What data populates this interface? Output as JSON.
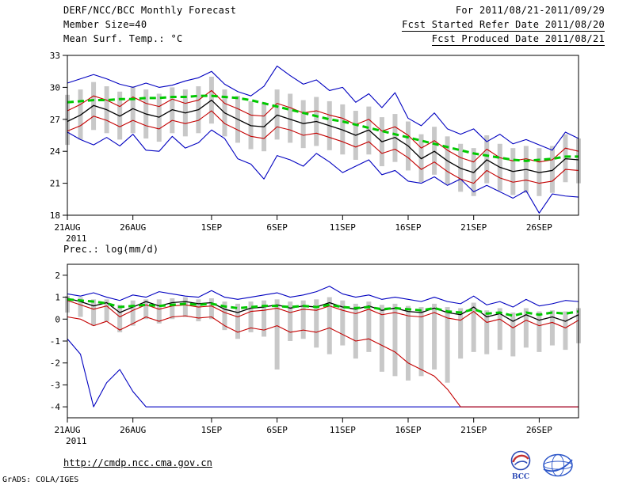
{
  "header": {
    "title": "DERF/NCC/BCC Monthly Forecast",
    "member_size": "Member Size=40",
    "temp_title": "Mean Surf. Temp.: °C",
    "forecast_range": "For 2011/08/21-2011/09/29",
    "fcst_started": "Fcst Started Refer Date 2011/08/20",
    "fcst_produced": "Fcst Produced Date 2011/08/21"
  },
  "footer": {
    "url": "http://cmdp.ncc.cma.gov.cn",
    "credit": "GrADS: COLA/IGES",
    "bcc_label": "BCC"
  },
  "colors": {
    "line_blue": "#0000c0",
    "line_red": "#c40000",
    "line_black": "#000000",
    "climatology_green": "#00c800",
    "spread_gray": "#c8c8c8"
  },
  "chart_data": [
    {
      "type": "line",
      "name": "temperature",
      "title": "Mean Surf. Temp.: °C",
      "xlabel": "",
      "ylabel": "Mean Surf. Temp. (°C)",
      "ylim": [
        18,
        33
      ],
      "yticks": [
        33,
        30,
        27,
        24,
        21,
        18
      ],
      "x_sub_label": "2011",
      "x_ticks": [
        {
          "i": 0,
          "label": "21AUG"
        },
        {
          "i": 5,
          "label": "26AUG"
        },
        {
          "i": 11,
          "label": "1SEP"
        },
        {
          "i": 16,
          "label": "6SEP"
        },
        {
          "i": 21,
          "label": "11SEP"
        },
        {
          "i": 26,
          "label": "16SEP"
        },
        {
          "i": 31,
          "label": "21SEP"
        },
        {
          "i": 36,
          "label": "26SEP"
        }
      ],
      "bars": {
        "color": "#c8c8c8",
        "high": [
          29.3,
          29.8,
          30.5,
          30.1,
          29.6,
          30.1,
          29.8,
          29.4,
          30.0,
          29.8,
          30.1,
          31.0,
          29.8,
          29.2,
          28.7,
          28.6,
          29.8,
          29.4,
          28.8,
          29.1,
          28.7,
          28.4,
          27.8,
          28.2,
          27.2,
          27.5,
          26.8,
          25.6,
          26.3,
          25.4,
          24.7,
          24.3,
          25.5,
          24.7,
          24.3,
          24.5,
          24.3,
          24.5,
          25.6,
          25.2
        ],
        "low": [
          24.6,
          25.1,
          26.0,
          25.7,
          25.1,
          25.7,
          25.2,
          24.9,
          25.7,
          25.4,
          25.7,
          26.6,
          25.4,
          24.8,
          24.2,
          24.0,
          25.1,
          24.8,
          24.3,
          24.5,
          24.1,
          23.7,
          23.2,
          23.7,
          22.6,
          23.0,
          22.2,
          21.1,
          21.8,
          20.9,
          20.2,
          19.8,
          21.0,
          20.3,
          19.9,
          20.1,
          19.8,
          20.1,
          21.1,
          21.0
        ]
      },
      "series": [
        {
          "name": "ensemble-max",
          "color": "#0000c0",
          "width": 1.1,
          "values": [
            30.4,
            30.8,
            31.2,
            30.8,
            30.3,
            30.0,
            30.4,
            30.0,
            30.2,
            30.6,
            30.9,
            31.5,
            30.3,
            29.6,
            29.2,
            30.1,
            32.0,
            31.1,
            30.3,
            30.7,
            29.7,
            30.0,
            28.6,
            29.4,
            28.1,
            29.5,
            27.1,
            26.4,
            27.6,
            26.1,
            25.6,
            26.1,
            24.9,
            25.6,
            24.7,
            25.1,
            24.6,
            24.1,
            25.8,
            25.2
          ]
        },
        {
          "name": "ensemble-min",
          "color": "#0000c0",
          "width": 1.1,
          "values": [
            25.8,
            25.1,
            24.6,
            25.3,
            24.5,
            25.6,
            24.1,
            24.0,
            25.4,
            24.3,
            24.8,
            26.0,
            25.2,
            23.3,
            22.8,
            21.4,
            23.6,
            23.2,
            22.6,
            23.8,
            23.0,
            22.0,
            22.6,
            23.2,
            21.8,
            22.2,
            21.2,
            21.0,
            21.6,
            20.8,
            21.4,
            20.2,
            20.8,
            20.2,
            19.6,
            20.3,
            18.2,
            20.0,
            19.8,
            19.7
          ]
        },
        {
          "name": "mean-plus-std",
          "color": "#c40000",
          "width": 1.1,
          "values": [
            27.8,
            28.4,
            29.2,
            28.8,
            28.2,
            29.1,
            28.5,
            28.2,
            28.9,
            28.5,
            28.8,
            29.7,
            28.5,
            28.0,
            27.4,
            27.3,
            28.5,
            28.1,
            27.6,
            27.8,
            27.4,
            27.1,
            26.5,
            27.0,
            25.9,
            26.3,
            25.5,
            24.3,
            25.0,
            24.1,
            23.4,
            23.0,
            24.2,
            23.4,
            23.1,
            23.3,
            23.0,
            23.2,
            24.3,
            24.0
          ]
        },
        {
          "name": "mean-minus-std",
          "color": "#c40000",
          "width": 1.1,
          "values": [
            25.9,
            26.4,
            27.3,
            26.9,
            26.3,
            26.9,
            26.4,
            26.1,
            26.9,
            26.6,
            26.9,
            27.8,
            26.6,
            26.0,
            25.4,
            25.2,
            26.3,
            26.0,
            25.5,
            25.7,
            25.3,
            24.9,
            24.4,
            24.9,
            23.8,
            24.2,
            23.4,
            22.3,
            23.0,
            22.1,
            21.4,
            21.0,
            22.2,
            21.5,
            21.1,
            21.3,
            21.0,
            21.2,
            22.3,
            22.2
          ]
        },
        {
          "name": "ensemble-mean",
          "color": "#000000",
          "width": 1.3,
          "values": [
            26.8,
            27.4,
            28.3,
            27.9,
            27.3,
            28.0,
            27.5,
            27.2,
            27.9,
            27.6,
            27.9,
            28.8,
            27.6,
            27.0,
            26.4,
            26.3,
            27.4,
            27.0,
            26.6,
            26.8,
            26.4,
            26.0,
            25.5,
            26.0,
            24.9,
            25.3,
            24.5,
            23.3,
            24.0,
            23.1,
            22.4,
            22.0,
            23.2,
            22.5,
            22.1,
            22.3,
            22.0,
            22.2,
            23.3,
            23.2
          ]
        },
        {
          "name": "climatology",
          "color": "#00c800",
          "width": 3,
          "dash": "8,5",
          "values": [
            28.6,
            28.7,
            28.8,
            28.8,
            28.9,
            28.9,
            29.0,
            29.0,
            29.1,
            29.1,
            29.2,
            29.2,
            29.1,
            29.0,
            28.8,
            28.5,
            28.2,
            27.9,
            27.6,
            27.3,
            27.0,
            26.8,
            26.5,
            26.2,
            25.9,
            25.6,
            25.3,
            25.0,
            24.7,
            24.4,
            24.1,
            23.8,
            23.6,
            23.4,
            23.2,
            23.1,
            23.2,
            23.3,
            23.5,
            23.5
          ]
        }
      ]
    },
    {
      "type": "line",
      "name": "precipitation",
      "title": "Prec.: log(mm/d)",
      "xlabel": "",
      "ylabel": "Prec. log(mm/d)",
      "ylim": [
        -4.5,
        2.5
      ],
      "yticks": [
        2,
        1,
        0,
        -1,
        -2,
        -3,
        -4
      ],
      "x_sub_label": "2011",
      "x_ticks": [
        {
          "i": 0,
          "label": "21AUG"
        },
        {
          "i": 5,
          "label": "26AUG"
        },
        {
          "i": 11,
          "label": "1SEP"
        },
        {
          "i": 16,
          "label": "6SEP"
        },
        {
          "i": 21,
          "label": "11SEP"
        },
        {
          "i": 26,
          "label": "16SEP"
        },
        {
          "i": 31,
          "label": "21SEP"
        },
        {
          "i": 36,
          "label": "26SEP"
        }
      ],
      "bars": {
        "color": "#c8c8c8",
        "high": [
          1.05,
          1.0,
          0.9,
          0.9,
          0.65,
          0.85,
          0.9,
          0.9,
          0.95,
          1.0,
          0.9,
          0.95,
          0.8,
          0.7,
          0.8,
          0.85,
          0.9,
          0.8,
          0.85,
          0.9,
          1.0,
          0.85,
          0.7,
          0.8,
          0.65,
          0.7,
          0.6,
          0.55,
          0.7,
          0.55,
          0.5,
          0.75,
          0.4,
          0.5,
          0.3,
          0.5,
          0.35,
          0.4,
          0.35,
          0.5
        ],
        "low": [
          0.3,
          0.1,
          -0.3,
          -0.1,
          -0.6,
          -0.3,
          0.0,
          -0.2,
          0.0,
          0.1,
          -0.1,
          0.0,
          -0.5,
          -0.9,
          -0.6,
          -0.8,
          -2.3,
          -1.0,
          -0.9,
          -1.3,
          -1.6,
          -1.2,
          -1.8,
          -1.5,
          -2.4,
          -2.6,
          -2.8,
          -2.6,
          -2.3,
          -2.9,
          -1.8,
          -1.5,
          -1.6,
          -1.4,
          -1.7,
          -1.3,
          -1.5,
          -1.2,
          -1.4,
          -1.1
        ]
      },
      "series": [
        {
          "name": "ensemble-max",
          "color": "#0000c0",
          "width": 1.1,
          "values": [
            1.15,
            1.05,
            1.2,
            1.0,
            0.85,
            1.1,
            1.0,
            1.25,
            1.15,
            1.05,
            1.0,
            1.3,
            1.0,
            0.9,
            1.0,
            1.1,
            1.2,
            1.0,
            1.1,
            1.25,
            1.5,
            1.15,
            1.0,
            1.1,
            0.9,
            1.0,
            0.9,
            0.8,
            1.0,
            0.8,
            0.7,
            1.05,
            0.65,
            0.8,
            0.55,
            0.9,
            0.6,
            0.7,
            0.85,
            0.8
          ]
        },
        {
          "name": "ensemble-min",
          "color": "#0000c0",
          "width": 1.1,
          "values": [
            -0.9,
            -1.6,
            -4.0,
            -2.9,
            -2.3,
            -3.3,
            -4.0,
            -4.0,
            -4.0,
            -4.0,
            -4.0,
            -4.0,
            -4.0,
            -4.0,
            -4.0,
            -4.0,
            -4.0,
            -4.0,
            -4.0,
            -4.0,
            -4.0,
            -4.0,
            -4.0,
            -4.0,
            -4.0,
            -4.0,
            -4.0,
            -4.0,
            -4.0,
            -4.0,
            -4.0,
            -4.0,
            -4.0,
            -4.0,
            -4.0,
            -4.0,
            -4.0,
            -4.0,
            -4.0,
            -4.0
          ]
        },
        {
          "name": "mean-plus-std",
          "color": "#c40000",
          "width": 1.1,
          "values": [
            0.85,
            0.65,
            0.45,
            0.6,
            0.1,
            0.4,
            0.65,
            0.45,
            0.6,
            0.65,
            0.55,
            0.6,
            0.3,
            0.1,
            0.35,
            0.4,
            0.5,
            0.3,
            0.45,
            0.4,
            0.6,
            0.4,
            0.25,
            0.45,
            0.2,
            0.3,
            0.15,
            0.1,
            0.3,
            0.05,
            -0.05,
            0.35,
            -0.15,
            0.0,
            -0.4,
            -0.05,
            -0.3,
            -0.15,
            -0.4,
            -0.05
          ]
        },
        {
          "name": "mean-minus-std",
          "color": "#c40000",
          "width": 1.1,
          "values": [
            0.1,
            0.0,
            -0.3,
            -0.1,
            -0.5,
            -0.2,
            0.1,
            -0.1,
            0.1,
            0.15,
            0.05,
            0.1,
            -0.3,
            -0.6,
            -0.4,
            -0.5,
            -0.3,
            -0.6,
            -0.5,
            -0.6,
            -0.4,
            -0.7,
            -1.0,
            -0.9,
            -1.2,
            -1.5,
            -2.0,
            -2.3,
            -2.6,
            -3.2,
            -4.0,
            -4.0,
            -4.0,
            -4.0,
            -4.0,
            -4.0,
            -4.0,
            -4.0,
            -4.0,
            -4.0
          ]
        },
        {
          "name": "ensemble-mean",
          "color": "#000000",
          "width": 1.3,
          "values": [
            0.95,
            0.8,
            0.6,
            0.75,
            0.3,
            0.55,
            0.8,
            0.6,
            0.75,
            0.8,
            0.7,
            0.75,
            0.45,
            0.3,
            0.5,
            0.55,
            0.65,
            0.5,
            0.6,
            0.55,
            0.75,
            0.55,
            0.45,
            0.6,
            0.4,
            0.5,
            0.35,
            0.3,
            0.5,
            0.3,
            0.2,
            0.55,
            0.1,
            0.25,
            -0.1,
            0.2,
            -0.05,
            0.1,
            -0.1,
            0.2
          ]
        },
        {
          "name": "climatology",
          "color": "#00c800",
          "width": 3,
          "dash": "8,5",
          "values": [
            0.9,
            0.85,
            0.8,
            0.72,
            0.55,
            0.6,
            0.65,
            0.6,
            0.65,
            0.7,
            0.65,
            0.7,
            0.58,
            0.5,
            0.55,
            0.6,
            0.6,
            0.55,
            0.6,
            0.55,
            0.65,
            0.55,
            0.5,
            0.55,
            0.45,
            0.5,
            0.45,
            0.4,
            0.5,
            0.35,
            0.3,
            0.45,
            0.25,
            0.3,
            0.15,
            0.3,
            0.2,
            0.3,
            0.25,
            0.35
          ]
        }
      ]
    }
  ]
}
